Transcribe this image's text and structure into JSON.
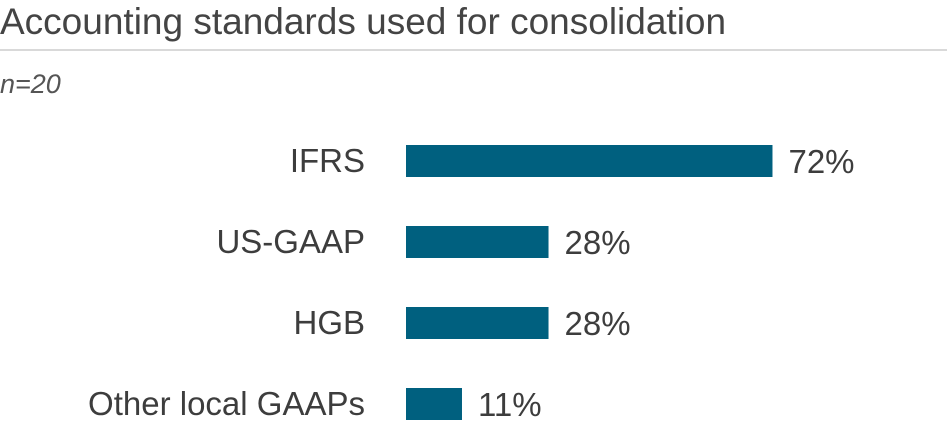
{
  "chart_data": {
    "type": "bar",
    "orientation": "horizontal",
    "title": "Accounting standards used for consolidation",
    "subtitle": "n=20",
    "categories": [
      "IFRS",
      "US-GAAP",
      "HGB",
      "Other local GAAPs"
    ],
    "values": [
      72,
      28,
      28,
      11
    ],
    "value_labels": [
      "72%",
      "28%",
      "28%",
      "11%"
    ],
    "unit": "%",
    "xlim": [
      0,
      100
    ],
    "grid": false,
    "legend": "none",
    "bar_color": "#00607f"
  }
}
